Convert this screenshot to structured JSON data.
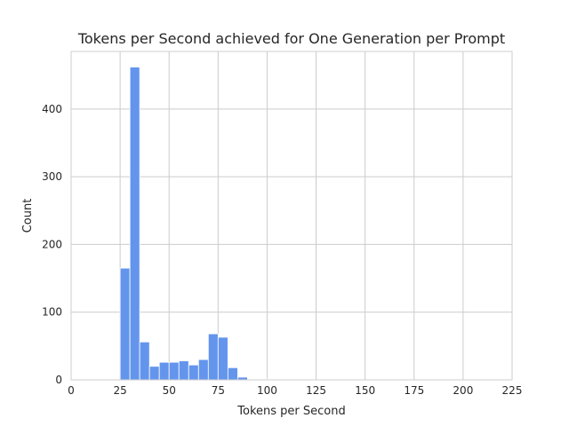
{
  "chart_data": {
    "type": "bar",
    "title": "Tokens per Second achieved for One Generation per Prompt",
    "xlabel": "Tokens per Second",
    "ylabel": "Count",
    "xlim": [
      0,
      225
    ],
    "ylim": [
      0,
      485
    ],
    "x_ticks": [
      "0",
      "25",
      "50",
      "75",
      "100",
      "125",
      "150",
      "175",
      "200",
      "225"
    ],
    "y_ticks": [
      "0",
      "100",
      "200",
      "300",
      "400"
    ],
    "grid": true,
    "bar_color": "#6495ed",
    "bin_width": 5,
    "bins": [
      {
        "start": 25,
        "count": 165
      },
      {
        "start": 30,
        "count": 462
      },
      {
        "start": 35,
        "count": 56
      },
      {
        "start": 40,
        "count": 20
      },
      {
        "start": 45,
        "count": 26
      },
      {
        "start": 50,
        "count": 26
      },
      {
        "start": 55,
        "count": 28
      },
      {
        "start": 60,
        "count": 22
      },
      {
        "start": 65,
        "count": 30
      },
      {
        "start": 70,
        "count": 68
      },
      {
        "start": 75,
        "count": 63
      },
      {
        "start": 80,
        "count": 18
      },
      {
        "start": 85,
        "count": 4
      },
      {
        "start": 90,
        "count": 1
      },
      {
        "start": 95,
        "count": 1
      },
      {
        "start": 100,
        "count": 1
      },
      {
        "start": 105,
        "count": 1
      },
      {
        "start": 110,
        "count": 1
      },
      {
        "start": 220,
        "count": 1
      }
    ]
  }
}
